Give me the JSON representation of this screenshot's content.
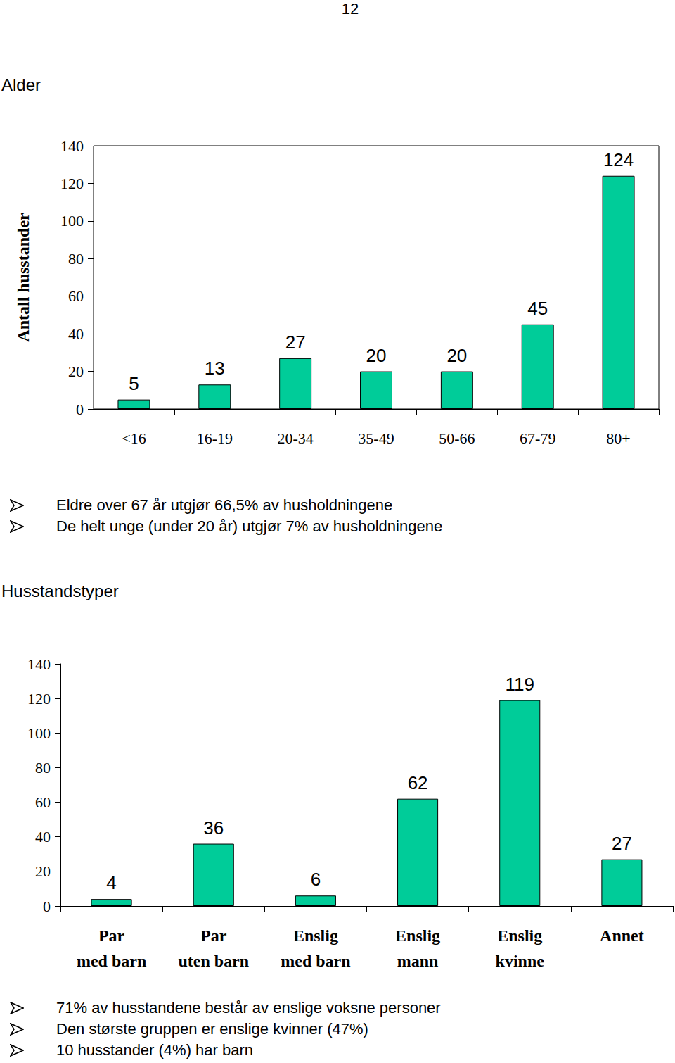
{
  "page_number": "12",
  "chart_data": [
    {
      "type": "bar",
      "title": "Alder",
      "y_label": "Antall husstander",
      "categories": [
        "<16",
        "16-19",
        "20-34",
        "35-49",
        "50-66",
        "67-79",
        "80+"
      ],
      "values": [
        5,
        13,
        27,
        20,
        20,
        45,
        124
      ],
      "color": "#00cc99",
      "ylim": [
        0,
        140
      ],
      "yticks": [
        0,
        20,
        40,
        60,
        80,
        100,
        120,
        140
      ],
      "grid": false,
      "data_labels": true,
      "annotations": [
        "Eldre over 67 år utgjør 66,5% av husholdningene",
        "De helt unge (under 20 år) utgjør 7% av husholdningene"
      ]
    },
    {
      "type": "bar",
      "title": "Husstandstyper",
      "categories": [
        "Par med barn",
        "Par uten barn",
        "Enslig med barn",
        "Enslig mann",
        "Enslig kvinne",
        "Annet"
      ],
      "values": [
        4,
        36,
        6,
        62,
        119,
        27
      ],
      "color": "#00cc99",
      "ylim": [
        0,
        140
      ],
      "yticks": [
        0,
        20,
        40,
        60,
        80,
        100,
        120,
        140
      ],
      "grid": false,
      "data_labels": true,
      "annotations": [
        "71% av husstandene består av enslige voksne personer",
        "Den største gruppen er enslige kvinner (47%)",
        "10 husstander (4%) har barn"
      ]
    }
  ]
}
